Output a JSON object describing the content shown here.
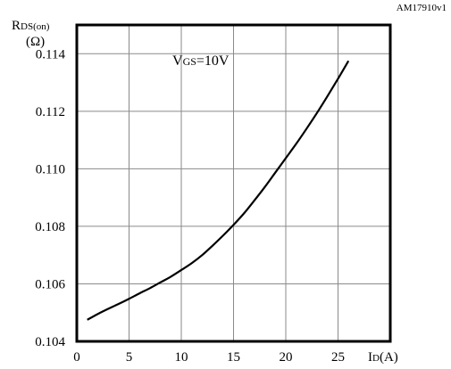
{
  "figure_id": "AM17910v1",
  "annotation": {
    "main": "V",
    "sub": "GS",
    "rest": "=10V"
  },
  "y_label": {
    "line1_main": "R",
    "line1_sub": "DS(on)",
    "line2": "(Ω)"
  },
  "x_label": {
    "main": "I",
    "sub": "D",
    "rest": "(A)"
  },
  "chart_data": {
    "type": "line",
    "x_ticks": [
      "0",
      "5",
      "10",
      "15",
      "20",
      "25"
    ],
    "y_ticks": [
      "0.104",
      "0.106",
      "0.108",
      "0.110",
      "0.112",
      "0.114"
    ],
    "xlim": [
      0,
      30
    ],
    "ylim": [
      0.104,
      0.115
    ],
    "grid": true,
    "series": [
      {
        "color": "#000000",
        "x": [
          1,
          2,
          3,
          4,
          5,
          6,
          7,
          8,
          9,
          10,
          11,
          12,
          13,
          14,
          15,
          16,
          17,
          18,
          19,
          20,
          21,
          22,
          23,
          24,
          25,
          26
        ],
        "y": [
          0.10475,
          0.10495,
          0.10513,
          0.1053,
          0.10548,
          0.10567,
          0.10585,
          0.10605,
          0.10625,
          0.10648,
          0.10672,
          0.107,
          0.10733,
          0.10768,
          0.10805,
          0.10845,
          0.1089,
          0.10937,
          0.10987,
          0.11037,
          0.11087,
          0.1114,
          0.11195,
          0.11253,
          0.11313,
          0.11375
        ]
      }
    ]
  }
}
